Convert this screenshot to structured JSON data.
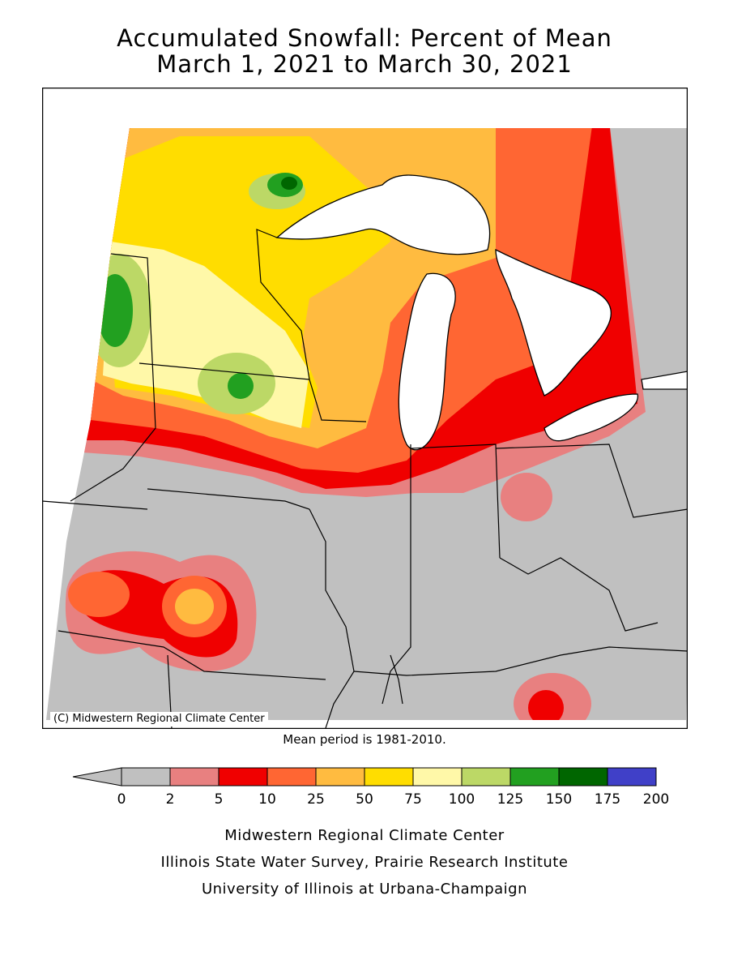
{
  "title_line1": "Accumulated Snowfall: Percent of Mean",
  "title_line2": "March 1, 2021 to March 30, 2021",
  "map_credit": "(C) Midwestern Regional Climate Center",
  "mean_period": "Mean period is 1981-2010.",
  "legend": {
    "ticks": [
      "0",
      "2",
      "5",
      "10",
      "25",
      "50",
      "75",
      "100",
      "125",
      "150",
      "175",
      "200"
    ],
    "colors": [
      "#c0c0c0",
      "#e88080",
      "#f00000",
      "#ff6633",
      "#ffbb40",
      "#ffdd00",
      "#fff8a8",
      "#bcd866",
      "#22a020",
      "#006600",
      "#4040c8"
    ],
    "arrow_color": "#c0c0c0"
  },
  "footer": {
    "line1": "Midwestern Regional Climate Center",
    "line2": "Illinois State Water Survey, Prairie Research Institute",
    "line3": "University of Illinois at Urbana-Champaign"
  },
  "colors": {
    "nodata": "#ffffff",
    "water": "#ffffff",
    "border": "#000000"
  }
}
